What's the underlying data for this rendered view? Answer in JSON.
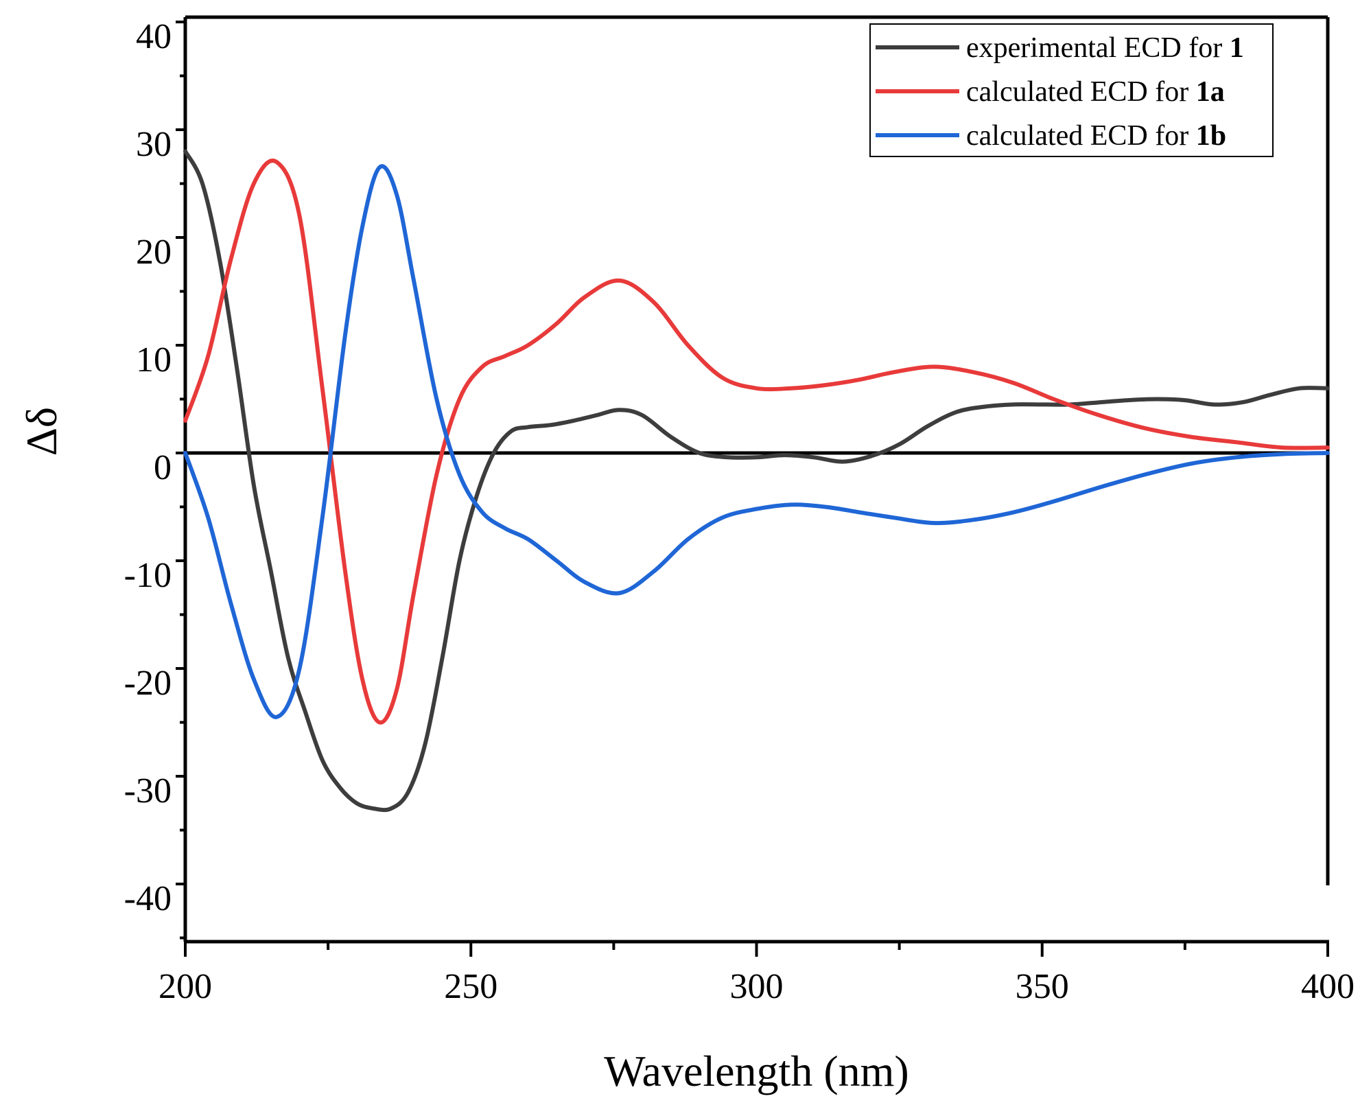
{
  "chart_data": {
    "type": "line",
    "xlabel": "Wavelength (nm)",
    "ylabel": "Δδ",
    "xlim": [
      200,
      400
    ],
    "ylim": [
      -45,
      40
    ],
    "x_ticks": [
      200,
      250,
      300,
      350,
      400
    ],
    "x_tick_labels": [
      "200",
      "250",
      "300",
      "350",
      "400"
    ],
    "y_ticks": [
      40,
      30,
      20,
      10,
      0,
      -10,
      -20,
      -30,
      -40
    ],
    "y_tick_labels": [
      "40",
      "30",
      "20",
      "10",
      "0",
      "-10",
      "-20",
      "-30",
      "-40"
    ],
    "zero_line": true,
    "grid": false,
    "legend_position": "top-right",
    "series": [
      {
        "name": "experimental ECD for ",
        "name_bold": "1",
        "color": "#3d3d3d",
        "x": [
          200,
          203,
          206,
          209,
          212,
          215,
          218,
          221,
          224,
          227,
          230,
          233,
          236,
          239,
          242,
          245,
          248,
          251,
          254,
          257,
          260,
          264,
          268,
          272,
          276,
          280,
          285,
          290,
          295,
          300,
          305,
          310,
          315,
          320,
          325,
          330,
          335,
          340,
          345,
          350,
          355,
          360,
          365,
          370,
          375,
          380,
          385,
          390,
          395,
          400
        ],
        "y": [
          28,
          25,
          18,
          8,
          -3,
          -11,
          -19,
          -24,
          -28.5,
          -31,
          -32.5,
          -33,
          -33,
          -31.5,
          -27,
          -19,
          -10,
          -4,
          0,
          2,
          2.4,
          2.6,
          3,
          3.5,
          4,
          3.5,
          1.5,
          0,
          -0.4,
          -0.4,
          -0.2,
          -0.4,
          -0.8,
          -0.3,
          0.8,
          2.5,
          3.8,
          4.3,
          4.5,
          4.5,
          4.5,
          4.7,
          4.9,
          5,
          4.9,
          4.5,
          4.7,
          5.4,
          6,
          6
        ]
      },
      {
        "name": "calculated ECD for ",
        "name_bold": "1a",
        "color": "#e83a3a",
        "x": [
          200,
          204,
          208,
          212,
          216,
          220,
          224,
          228,
          231,
          234,
          237,
          240,
          244,
          248,
          252,
          256,
          260,
          265,
          270,
          276,
          282,
          288,
          294,
          300,
          306,
          312,
          318,
          324,
          331,
          338,
          345,
          352,
          360,
          368,
          376,
          384,
          392,
          400
        ],
        "y": [
          3,
          9,
          18,
          25,
          27,
          22,
          6,
          -11,
          -21,
          -25,
          -22,
          -13,
          -2,
          5,
          8,
          9,
          10,
          12,
          14.5,
          16,
          14,
          10,
          7,
          6,
          6,
          6.3,
          6.8,
          7.5,
          8,
          7.5,
          6.5,
          5,
          3.5,
          2.3,
          1.5,
          1,
          0.5,
          0.5
        ]
      },
      {
        "name": "calculated ECD for ",
        "name_bold": "1b",
        "color": "#1f66d6",
        "x": [
          200,
          204,
          208,
          212,
          216,
          220,
          224,
          228,
          231,
          234,
          237,
          240,
          244,
          248,
          252,
          256,
          260,
          265,
          270,
          276,
          282,
          288,
          294,
          300,
          306,
          312,
          318,
          324,
          331,
          338,
          345,
          352,
          360,
          368,
          376,
          384,
          392,
          400
        ],
        "y": [
          0,
          -6,
          -14,
          -21,
          -24.5,
          -20,
          -6,
          11,
          21,
          26.5,
          24,
          16,
          5,
          -2,
          -5.5,
          -7,
          -8,
          -10,
          -12,
          -13,
          -11,
          -8,
          -6,
          -5.2,
          -4.8,
          -5,
          -5.5,
          -6,
          -6.5,
          -6.2,
          -5.5,
          -4.5,
          -3.2,
          -2,
          -1,
          -0.4,
          -0.1,
          0
        ]
      }
    ]
  }
}
